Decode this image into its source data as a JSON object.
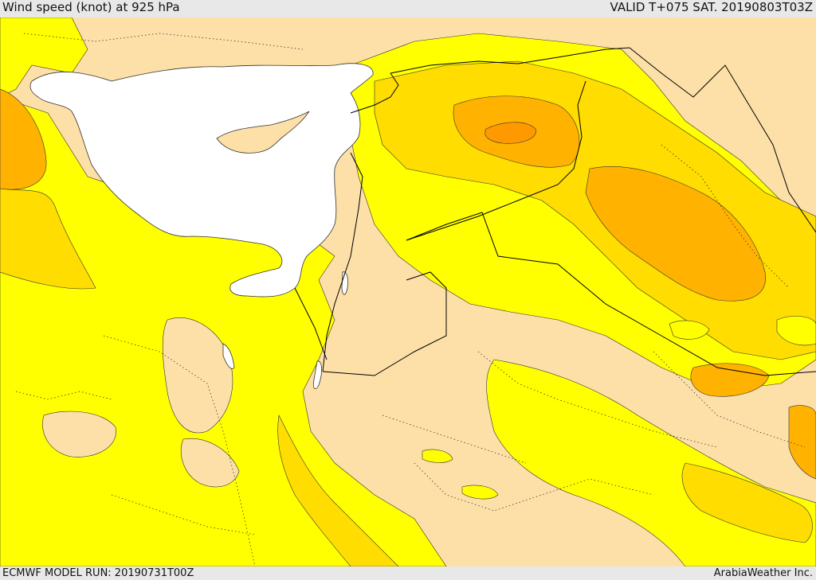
{
  "header": {
    "title": "Wind speed (knot) at 925 hPa",
    "valid_time": "VALID T+075 SAT. 20190803T03Z"
  },
  "footer": {
    "model_run": "ECMWF MODEL RUN: 20190731T00Z",
    "credit": "ArabiaWeather Inc."
  },
  "map": {
    "colors": {
      "sea": "#ffffff",
      "land_low": "#fde0a8",
      "band_yellow": "#ffff00",
      "band_gold": "#ffdd00",
      "band_orange": "#ffb300",
      "band_dark_orange": "#ff9900",
      "border": "#000000"
    }
  }
}
